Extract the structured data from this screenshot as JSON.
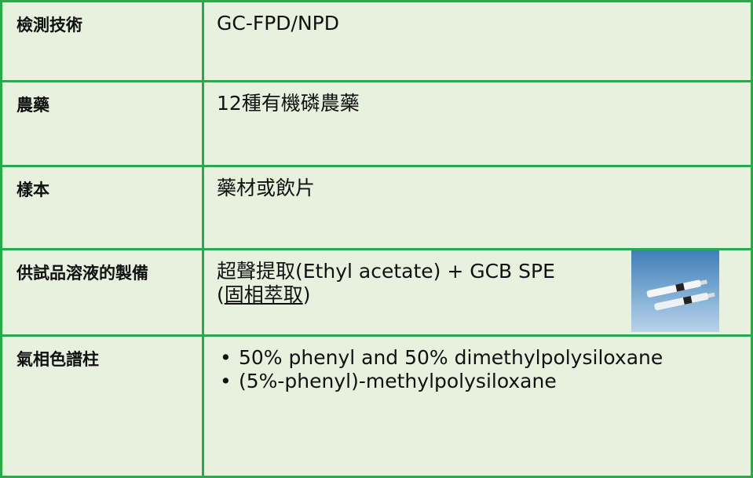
{
  "table": {
    "rows": [
      {
        "label": "檢測技術",
        "content": [
          "GC-FPD/NPD"
        ]
      },
      {
        "label": "農藥",
        "content": [
          "12種有機磷農藥"
        ]
      },
      {
        "label": "樣本",
        "content": [
          "藥材或飲片"
        ]
      },
      {
        "label": "供試品溶液的製備",
        "content": [
          "超聲提取(Ethyl acetate) + GCB SPE"
        ],
        "note": {
          "open": "(",
          "link": "固相萃取",
          "close": ")"
        }
      },
      {
        "label": "氣相色譜柱",
        "bullets": [
          "50% phenyl and 50% dimethylpolysiloxane",
          "(5%-phenyl)-methylpolysiloxane"
        ]
      }
    ]
  }
}
